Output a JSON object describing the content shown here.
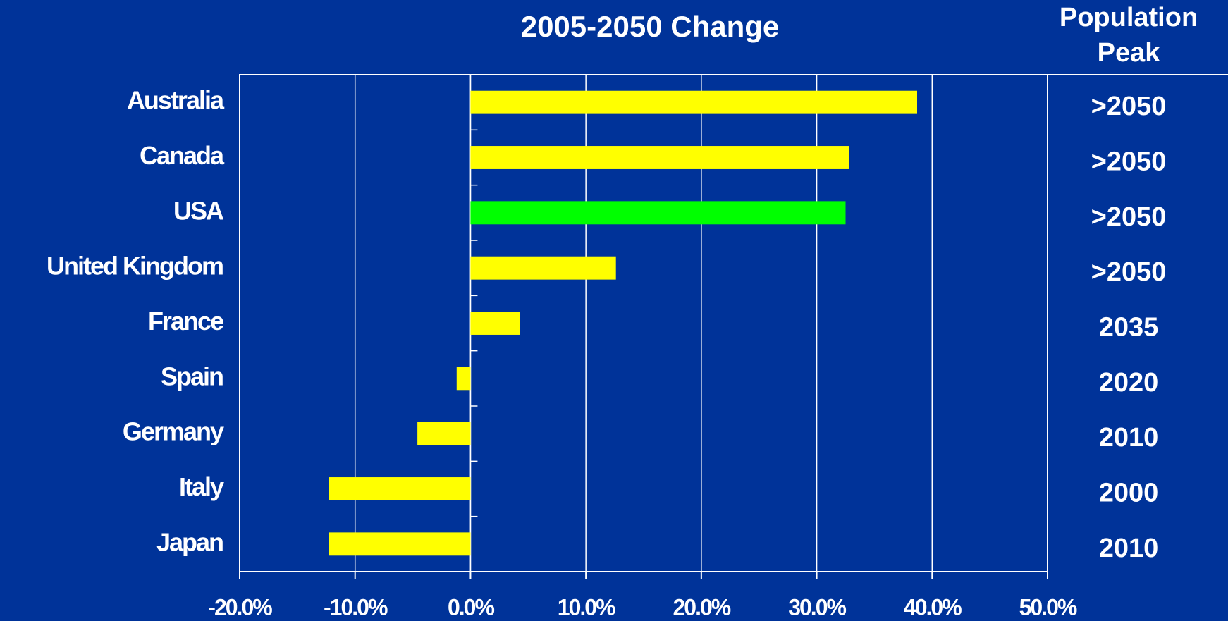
{
  "chart_data": {
    "type": "bar",
    "orientation": "horizontal",
    "title": "2005-2050 Change",
    "categories": [
      "Australia",
      "Canada",
      "USA",
      "United Kingdom",
      "France",
      "Spain",
      "Germany",
      "Italy",
      "Japan"
    ],
    "values": [
      38.7,
      32.8,
      32.5,
      12.6,
      4.3,
      -1.2,
      -4.6,
      -12.3,
      -12.3
    ],
    "colors": [
      "#ffff00",
      "#ffff00",
      "#00ff00",
      "#ffff00",
      "#ffff00",
      "#ffff00",
      "#ffff00",
      "#ffff00",
      "#ffff00"
    ],
    "xlim": [
      -20,
      50
    ],
    "xticks": [
      {
        "value": -20,
        "label": "-20.0%"
      },
      {
        "value": -10,
        "label": "-10.0%"
      },
      {
        "value": 0,
        "label": "0.0%"
      },
      {
        "value": 10,
        "label": "10.0%"
      },
      {
        "value": 20,
        "label": "20.0%"
      },
      {
        "value": 30,
        "label": "30.0%"
      },
      {
        "value": 40,
        "label": "40.0%"
      },
      {
        "value": 50,
        "label": "50.0%"
      }
    ],
    "grid": true,
    "peak_header": "Population Peak",
    "peak_labels": [
      ">2050",
      ">2050",
      ">2050",
      ">2050",
      "2035",
      "2020",
      "2010",
      "2000",
      "2010"
    ]
  }
}
